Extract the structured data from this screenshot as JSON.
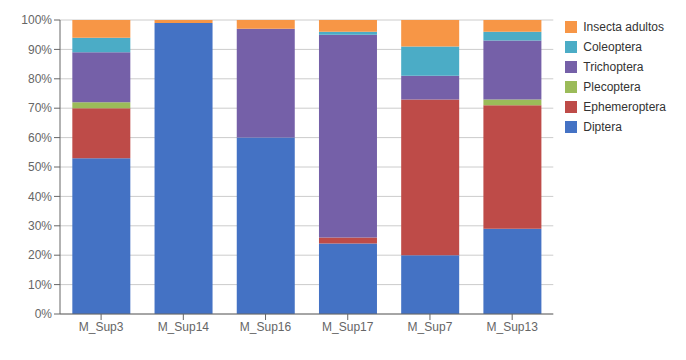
{
  "chart_data": {
    "type": "bar",
    "stacked": true,
    "categories": [
      "M_Sup3",
      "M_Sup14",
      "M_Sup16",
      "M_Sup17",
      "M_Sup7",
      "M_Sup13"
    ],
    "series": [
      {
        "name": "Diptera",
        "color": "#4472C4",
        "values": [
          53,
          99,
          60,
          24,
          20,
          29
        ]
      },
      {
        "name": "Ephemeroptera",
        "color": "#BE4B48",
        "values": [
          17,
          0,
          0,
          2,
          53,
          42
        ]
      },
      {
        "name": "Plecoptera",
        "color": "#9BBB59",
        "values": [
          2,
          0,
          0,
          0,
          0,
          2
        ]
      },
      {
        "name": "Trichoptera",
        "color": "#7560A8",
        "values": [
          17,
          0,
          37,
          69,
          8,
          20
        ]
      },
      {
        "name": "Coleoptera",
        "color": "#4BACC6",
        "values": [
          5,
          0,
          0,
          1,
          10,
          3
        ]
      },
      {
        "name": "Insecta adultos",
        "color": "#F79646",
        "values": [
          6,
          1,
          3,
          4,
          9,
          4
        ]
      }
    ],
    "ylim": [
      0,
      100
    ],
    "yticks": [
      {
        "value": 0,
        "label": "0%"
      },
      {
        "value": 10,
        "label": "10%"
      },
      {
        "value": 20,
        "label": "20%"
      },
      {
        "value": 30,
        "label": "30%"
      },
      {
        "value": 40,
        "label": "40%"
      },
      {
        "value": 50,
        "label": "50%"
      },
      {
        "value": 60,
        "label": "60%"
      },
      {
        "value": 70,
        "label": "70%"
      },
      {
        "value": 80,
        "label": "80%"
      },
      {
        "value": 90,
        "label": "90%"
      },
      {
        "value": 100,
        "label": "100%"
      }
    ],
    "grid": true,
    "legend": "right"
  }
}
